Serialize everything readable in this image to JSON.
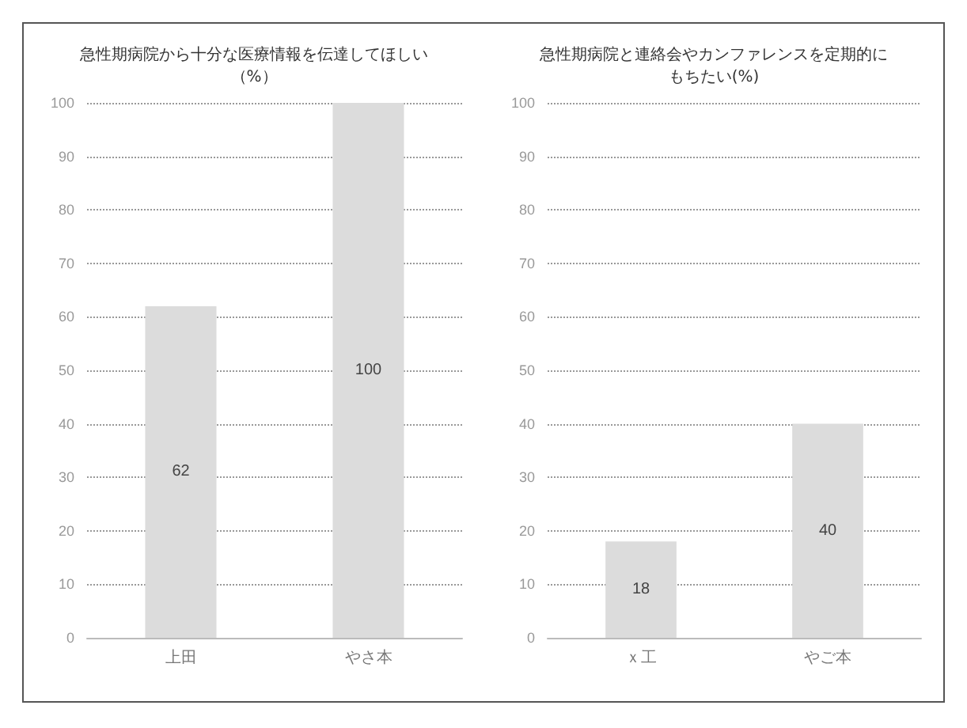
{
  "chart_data": [
    {
      "type": "bar",
      "title": "急性期病院から十分な医療情報を伝達してほしい（%）",
      "categories": [
        "上田",
        "やさ本"
      ],
      "values": [
        62,
        100
      ],
      "color": "#dcdcdc",
      "ylim": [
        0,
        100
      ],
      "yticks": [
        0,
        10,
        20,
        30,
        40,
        50,
        60,
        70,
        80,
        90,
        100
      ],
      "grid": "y",
      "data_labels": true
    },
    {
      "type": "bar",
      "title": "急性期病院と連絡会やカンファレンスを定期的にもちたい(%)",
      "categories": [
        "ｘ工",
        "やご本"
      ],
      "values": [
        18,
        40
      ],
      "color": "#dcdcdc",
      "ylim": [
        0,
        100
      ],
      "yticks": [
        0,
        10,
        20,
        30,
        40,
        50,
        60,
        70,
        80,
        90,
        100
      ],
      "grid": "y",
      "data_labels": true
    }
  ]
}
